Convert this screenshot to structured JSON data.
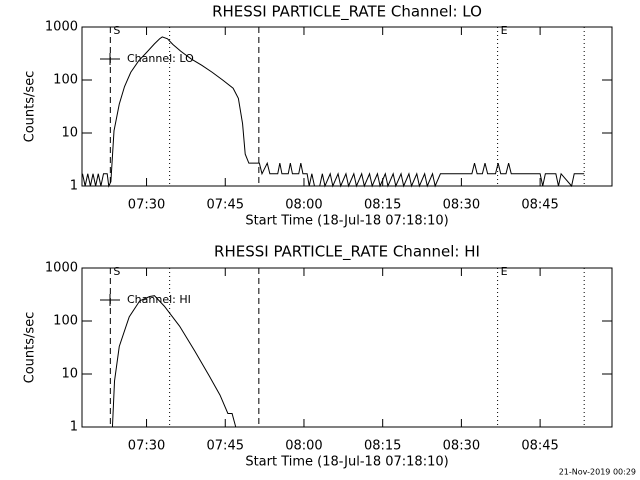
{
  "chart_data": [
    {
      "type": "line",
      "title": "RHESSI PARTICLE_RATE Channel: LO",
      "ylabel": "Counts/sec",
      "xlabel": "Start Time (18-Jul-18 07:18:10)",
      "x": [
        17.8,
        18.3,
        18.8,
        19.3,
        19.8,
        20.3,
        20.8,
        21.3,
        21.8,
        22.5,
        22.8,
        23.2,
        23.8,
        24.8,
        25.8,
        27,
        28.5,
        30,
        31.5,
        32.5,
        33,
        34,
        35,
        36.5,
        38.5,
        40.5,
        42.5,
        44.5,
        46.5,
        47.5,
        48.3,
        48.8,
        49.5,
        51.5,
        52,
        53,
        53.5,
        55,
        55.4,
        55.8,
        57,
        57.4,
        57.8,
        59,
        59.4,
        59.8,
        60.6,
        61,
        61.5,
        62,
        63,
        63.5,
        64,
        65,
        65.5,
        66.5,
        67,
        68,
        68.5,
        69.5,
        70,
        71,
        71.5,
        72.5,
        73,
        74,
        74.5,
        75.5,
        76,
        77,
        77.5,
        78.5,
        79,
        80,
        80.5,
        81.5,
        82,
        83,
        83.5,
        84.5,
        85,
        86,
        92,
        92.5,
        93,
        94,
        94.5,
        95,
        96.5,
        97,
        97.5,
        98.5,
        99,
        99.5,
        105,
        105.5,
        106,
        108,
        108.5,
        109,
        111,
        111.5,
        113.4
      ],
      "series": [
        {
          "name": "Channel: LO",
          "color": "#000000",
          "values": [
            1.7,
            1,
            1.7,
            1,
            1.7,
            1,
            1.7,
            1,
            1.7,
            1.7,
            1,
            1.2,
            11,
            35,
            75,
            140,
            230,
            330,
            480,
            600,
            650,
            600,
            470,
            350,
            250,
            190,
            140,
            100,
            70,
            45,
            15,
            4,
            2.7,
            2.7,
            1.7,
            2.7,
            1.7,
            1.7,
            2.7,
            1.7,
            1.7,
            2.7,
            1.7,
            1.7,
            2.7,
            1.7,
            1.7,
            1,
            1.7,
            1,
            1,
            1.7,
            1,
            1.7,
            1,
            1.7,
            1,
            1.7,
            1,
            1.7,
            1,
            1.7,
            1,
            1.7,
            1,
            1.7,
            1,
            1.7,
            1,
            1.7,
            1,
            1.7,
            1,
            1.7,
            1,
            1.7,
            1,
            1.7,
            1,
            1.7,
            1,
            1.7,
            1.7,
            2.7,
            1.7,
            1.7,
            2.7,
            1.7,
            1.7,
            2.7,
            1.7,
            1.7,
            2.7,
            1.7,
            1.7,
            1,
            1.7,
            1.7,
            1,
            1.7,
            1,
            1.7,
            1.7
          ]
        }
      ],
      "xlim": [
        17.7,
        118.7
      ],
      "xticks": [
        {
          "value": 30,
          "label": "07:30"
        },
        {
          "value": 45,
          "label": "07:45"
        },
        {
          "value": 60,
          "label": "08:00"
        },
        {
          "value": 75,
          "label": "08:15"
        },
        {
          "value": 90,
          "label": "08:30"
        },
        {
          "value": 105,
          "label": "08:45"
        }
      ],
      "ylim": [
        1,
        1000
      ],
      "yticks": [
        1,
        10,
        100,
        1000
      ],
      "log_y": true,
      "legend": "upper left",
      "markers": [
        {
          "x": 23.1,
          "style": "dashed",
          "label": "S"
        },
        {
          "x": 34.4,
          "style": "dotted"
        },
        {
          "x": 51.4,
          "style": "dashed"
        },
        {
          "x": 96.9,
          "style": "dotted",
          "label": "E"
        },
        {
          "x": 113.4,
          "style": "dotted"
        }
      ]
    },
    {
      "type": "line",
      "title": "RHESSI PARTICLE_RATE Channel: HI",
      "ylabel": "Counts/sec",
      "xlabel": "Start Time (18-Jul-18 07:18:10)",
      "x": [
        23.5,
        23.9,
        24.8,
        26.7,
        28.7,
        30.6,
        31.5,
        33.4,
        36.3,
        39.2,
        42.0,
        44.0,
        45.5,
        46.3,
        47.0
      ],
      "series": [
        {
          "name": "Channel: HI",
          "color": "#000000",
          "values": [
            1,
            7.4,
            33,
            120,
            240,
            290,
            300,
            190,
            80,
            27,
            9,
            4,
            1.8,
            1.8,
            1
          ]
        }
      ],
      "xlim": [
        17.7,
        118.7
      ],
      "xticks": [
        {
          "value": 30,
          "label": "07:30"
        },
        {
          "value": 45,
          "label": "07:45"
        },
        {
          "value": 60,
          "label": "08:00"
        },
        {
          "value": 75,
          "label": "08:15"
        },
        {
          "value": 90,
          "label": "08:30"
        },
        {
          "value": 105,
          "label": "08:45"
        }
      ],
      "ylim": [
        1,
        1000
      ],
      "yticks": [
        1,
        10,
        100,
        1000
      ],
      "log_y": true,
      "legend": "upper left",
      "markers": [
        {
          "x": 23.1,
          "style": "dashed",
          "label": "S"
        },
        {
          "x": 34.4,
          "style": "dotted"
        },
        {
          "x": 51.4,
          "style": "dashed"
        },
        {
          "x": 96.9,
          "style": "dotted",
          "label": "E"
        },
        {
          "x": 113.4,
          "style": "dotted"
        }
      ]
    }
  ],
  "footer": "21-Nov-2019 00:29"
}
